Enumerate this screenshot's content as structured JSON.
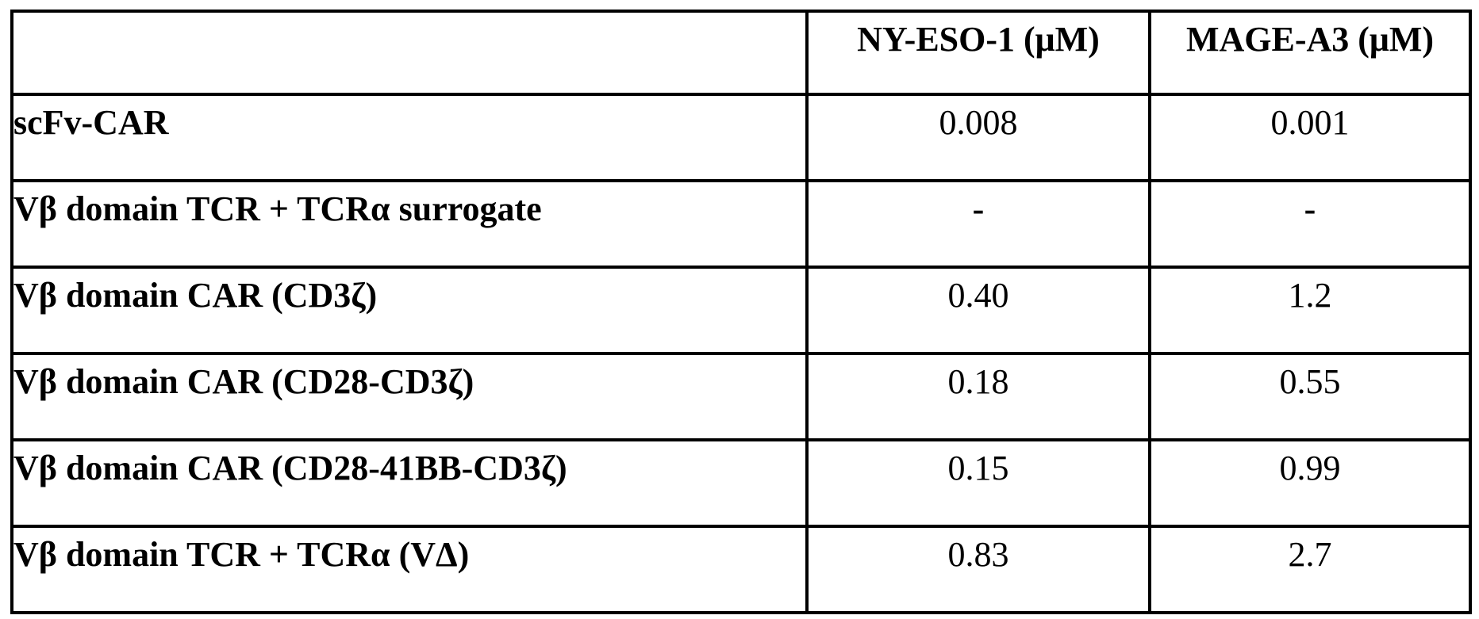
{
  "table": {
    "columns": [
      "",
      "NY-ESO-1 (μM)",
      "MAGE-A3 (μM)"
    ],
    "rows": [
      {
        "label": "scFv-CAR",
        "values": [
          "0.008",
          "0.001"
        ]
      },
      {
        "label": "Vβ domain TCR + TCRα surrogate",
        "values": [
          "-",
          "-"
        ]
      },
      {
        "label": "Vβ domain CAR (CD3ζ)",
        "values": [
          "0.40",
          "1.2"
        ]
      },
      {
        "label": "Vβ domain CAR (CD28-CD3ζ)",
        "values": [
          "0.18",
          "0.55"
        ]
      },
      {
        "label": "Vβ domain CAR (CD28-41BB-CD3ζ)",
        "values": [
          "0.15",
          "0.99"
        ]
      },
      {
        "label": "Vβ domain TCR + TCRα (VΔ)",
        "values": [
          "0.83",
          "2.7"
        ]
      }
    ],
    "colors": {
      "border": "#000000",
      "background": "#ffffff",
      "text": "#000000"
    }
  }
}
